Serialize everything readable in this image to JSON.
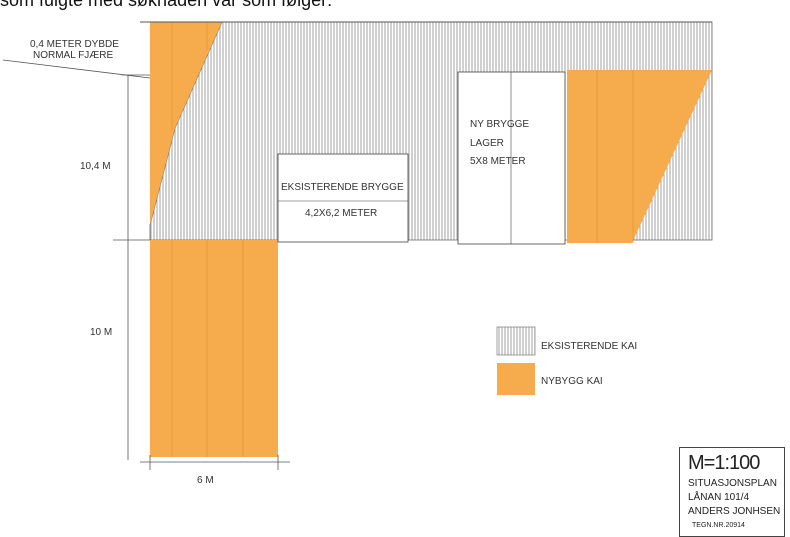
{
  "header_text": "som fulgte med søknaden var som følger:",
  "labels": {
    "depth_line1": "0,4 METER DYBDE",
    "depth_line2": "NORMAL FJÆRE",
    "dim_upper": "10,4 M",
    "dim_lower": "10 M",
    "dim_width": "6 M",
    "existing_pier_title": "EKSISTERENDE BRYGGE",
    "existing_pier_size": "4,2X6,2 METER",
    "new_pier_line1": "NY BRYGGE",
    "new_pier_line2": "LAGER",
    "new_pier_line3": "5X8 METER"
  },
  "legend": {
    "existing": "EKSISTERENDE KAI",
    "new": "NYBYGG KAI"
  },
  "title_block": {
    "scale": "M=1:100",
    "line1": "SITUASJONSPLAN",
    "line2": "LÅNAN 101/4",
    "line3": "ANDERS JONHSEN",
    "drawing_no": "TEGN.NR.20914"
  },
  "colors": {
    "new_quay": "#f6ab4c",
    "hatch_line": "#8a8a8a",
    "ink": "#333333"
  }
}
